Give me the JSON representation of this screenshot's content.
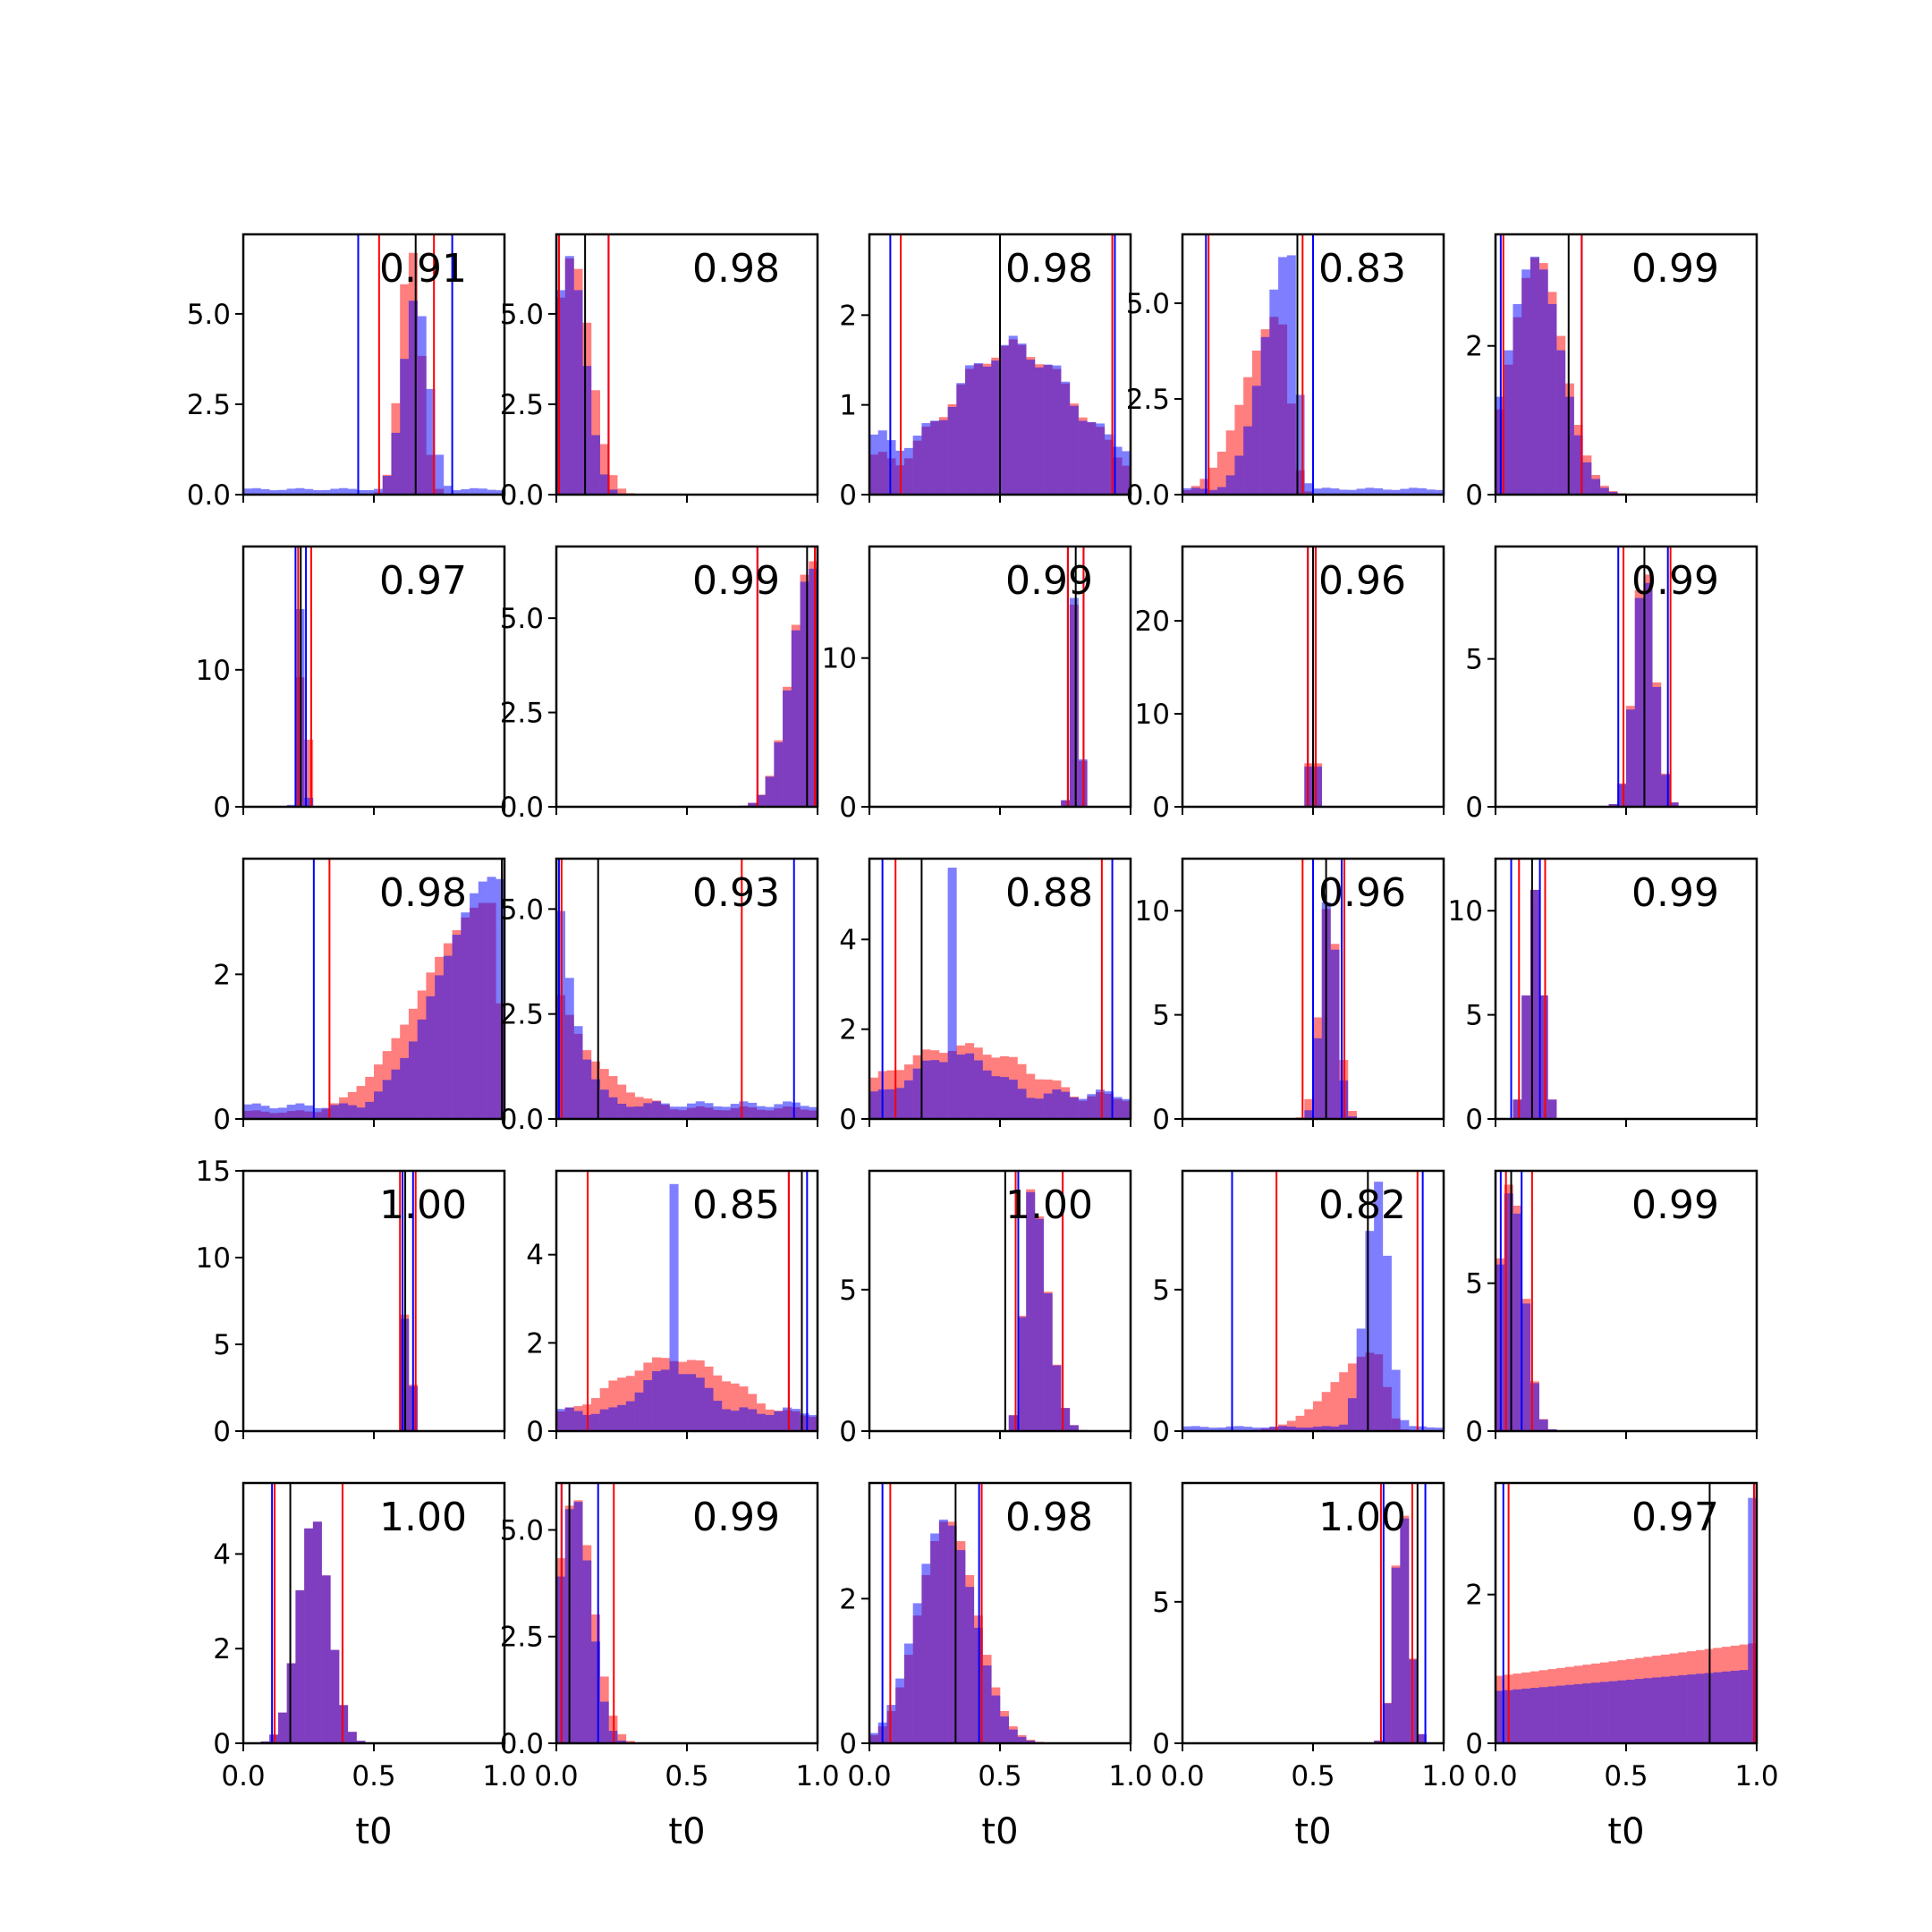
{
  "chart_data": {
    "type": "histogram-grid",
    "rows": 5,
    "cols": 5,
    "xlabel": "t0",
    "xlim": [
      0,
      1
    ],
    "xticks": [
      0,
      0.5,
      1
    ],
    "xtick_labels": [
      "0.0",
      "0.5",
      "1.0"
    ],
    "colors": {
      "hist_a": "#ff0000",
      "hist_b": "#0000ff",
      "hist_alpha": 0.5,
      "interval_a": "#ff0000",
      "interval_b": "#0000ff",
      "true_value": "#000000"
    },
    "panels": [
      {
        "label": "0.91",
        "ymax": 7.2,
        "yticks": [
          0,
          2.5,
          5.0
        ],
        "ytick_labels": [
          "0.0",
          "2.5",
          "5.0"
        ],
        "truth": 0.66,
        "lines_a": [
          0.52,
          0.73
        ],
        "lines_b": [
          0.44,
          0.8
        ],
        "dist_a": {
          "kind": "normal",
          "mu": 0.64,
          "sigma": 0.04,
          "peak": 6.9
        },
        "dist_b": {
          "kind": "normal",
          "mu": 0.66,
          "sigma": 0.05,
          "peak": 5.5,
          "floor": 0.15
        }
      },
      {
        "label": "0.98",
        "ymax": 7.2,
        "yticks": [
          0,
          2.5,
          5.0
        ],
        "ytick_labels": [
          "0.0",
          "2.5",
          "5.0"
        ],
        "truth": 0.11,
        "lines_a": [
          0.01,
          0.2
        ],
        "lines_b": [
          0.01,
          0.2
        ],
        "dist_a": {
          "kind": "normal",
          "mu": 0.06,
          "sigma": 0.07,
          "peak": 6.6
        },
        "dist_b": {
          "kind": "normal",
          "mu": 0.05,
          "sigma": 0.06,
          "peak": 6.6
        }
      },
      {
        "label": "0.98",
        "ymax": 2.9,
        "yticks": [
          0,
          1,
          2
        ],
        "ytick_labels": [
          "0",
          "1",
          "2"
        ],
        "truth": 0.5,
        "lines_a": [
          0.12,
          0.93
        ],
        "lines_b": [
          0.08,
          0.94
        ],
        "dist_a": {
          "kind": "normal",
          "mu": 0.55,
          "sigma": 0.25,
          "peak": 1.65,
          "floor": 0.4
        },
        "dist_b": {
          "kind": "normal",
          "mu": 0.55,
          "sigma": 0.25,
          "peak": 1.65,
          "floor": 0.6
        }
      },
      {
        "label": "0.83",
        "ymax": 6.8,
        "yticks": [
          0,
          2.5,
          5.0
        ],
        "ytick_labels": [
          "0.0",
          "2.5",
          "5.0"
        ],
        "truth": 0.44,
        "lines_a": [
          0.1,
          0.46
        ],
        "lines_b": [
          0.09,
          0.5
        ],
        "dist_a": {
          "kind": "skew",
          "mu": 0.37,
          "sl": 0.13,
          "sr": 0.04,
          "peak": 4.7
        },
        "dist_b": {
          "kind": "skew",
          "mu": 0.41,
          "sl": 0.1,
          "sr": 0.03,
          "peak": 6.4,
          "floor": 0.15
        }
      },
      {
        "label": "0.99",
        "ymax": 3.5,
        "yticks": [
          0,
          2
        ],
        "ytick_labels": [
          "0",
          "2"
        ],
        "truth": 0.28,
        "lines_a": [
          0.03,
          0.33
        ],
        "lines_b": [
          0.02,
          0.33
        ],
        "dist_a": {
          "kind": "normal",
          "mu": 0.16,
          "sigma": 0.1,
          "peak": 3.2
        },
        "dist_b": {
          "kind": "normal",
          "mu": 0.15,
          "sigma": 0.1,
          "peak": 3.2
        }
      },
      {
        "label": "0.97",
        "ymax": 19,
        "yticks": [
          0,
          10
        ],
        "ytick_labels": [
          "0",
          "10"
        ],
        "truth": 0.22,
        "lines_a": [
          0.21,
          0.26
        ],
        "lines_b": [
          0.2,
          0.24
        ],
        "dist_a": {
          "kind": "normal",
          "mu": 0.23,
          "sigma": 0.013,
          "peak": 16
        },
        "dist_b": {
          "kind": "normal",
          "mu": 0.22,
          "sigma": 0.012,
          "peak": 15
        }
      },
      {
        "label": "0.99",
        "ymax": 6.9,
        "yticks": [
          0,
          2.5,
          5.0
        ],
        "ytick_labels": [
          "0.0",
          "2.5",
          "5.0"
        ],
        "truth": 0.96,
        "lines_a": [
          0.77,
          0.99
        ],
        "lines_b": [
          0.77,
          0.99
        ],
        "dist_a": {
          "kind": "skew",
          "mu": 0.98,
          "sl": 0.08,
          "sr": 0.02,
          "peak": 6.6
        },
        "dist_b": {
          "kind": "skew",
          "mu": 0.98,
          "sl": 0.08,
          "sr": 0.02,
          "peak": 6.4
        }
      },
      {
        "label": "0.99",
        "ymax": 17.5,
        "yticks": [
          0,
          10
        ],
        "ytick_labels": [
          "0",
          "10"
        ],
        "truth": 0.79,
        "lines_a": [
          0.76,
          0.82
        ],
        "lines_b": [
          0.76,
          0.82
        ],
        "dist_a": {
          "kind": "normal",
          "mu": 0.79,
          "sigma": 0.015,
          "peak": 15
        },
        "dist_b": {
          "kind": "normal",
          "mu": 0.79,
          "sigma": 0.015,
          "peak": 15.5
        }
      },
      {
        "label": "0.96",
        "ymax": 28,
        "yticks": [
          0,
          10,
          20
        ],
        "ytick_labels": [
          "0",
          "10",
          "20"
        ],
        "truth": 0.5,
        "lines_a": [
          0.48,
          0.51
        ],
        "lines_b": [
          0.48,
          0.51
        ],
        "dist_a": {
          "kind": "normal",
          "mu": 0.5,
          "sigma": 0.009,
          "peak": 26
        },
        "dist_b": {
          "kind": "normal",
          "mu": 0.5,
          "sigma": 0.009,
          "peak": 24
        }
      },
      {
        "label": "0.99",
        "ymax": 8.8,
        "yticks": [
          0,
          5
        ],
        "ytick_labels": [
          "0",
          "5"
        ],
        "truth": 0.57,
        "lines_a": [
          0.49,
          0.67
        ],
        "lines_b": [
          0.47,
          0.66
        ],
        "dist_a": {
          "kind": "normal",
          "mu": 0.57,
          "sigma": 0.04,
          "peak": 8.3
        },
        "dist_b": {
          "kind": "normal",
          "mu": 0.57,
          "sigma": 0.04,
          "peak": 8.0
        }
      },
      {
        "label": "0.98",
        "ymax": 3.6,
        "yticks": [
          0,
          2
        ],
        "ytick_labels": [
          "0",
          "2"
        ],
        "truth": 0.99,
        "lines_a": [
          0.33,
          0.99
        ],
        "lines_b": [
          0.27,
          0.99
        ],
        "dist_a": {
          "kind": "skew",
          "mu": 0.95,
          "sl": 0.26,
          "sr": 0.03,
          "peak": 3.0,
          "floor": 0.1
        },
        "dist_b": {
          "kind": "skew",
          "mu": 0.98,
          "sl": 0.22,
          "sr": 0.02,
          "peak": 3.4,
          "floor": 0.18
        }
      },
      {
        "label": "0.93",
        "ymax": 6.2,
        "yticks": [
          0,
          2.5,
          5.0
        ],
        "ytick_labels": [
          "0.0",
          "2.5",
          "5.0"
        ],
        "truth": 0.16,
        "lines_a": [
          0.71,
          0.02
        ],
        "lines_b": [
          0.01,
          0.91
        ],
        "dist_a": {
          "kind": "decay",
          "lambda": 5.5,
          "peak": 3.2,
          "floor": 0.25
        },
        "dist_b": {
          "kind": "decay",
          "lambda": 12,
          "peak": 6.0,
          "floor": 0.35
        }
      },
      {
        "label": "0.88",
        "ymax": 5.8,
        "yticks": [
          0,
          2,
          4
        ],
        "ytick_labels": [
          "0",
          "2",
          "4"
        ],
        "truth": 0.2,
        "lines_a": [
          0.89,
          0.1
        ],
        "lines_b": [
          0.05,
          0.93
        ],
        "dist_a": {
          "kind": "normal",
          "mu": 0.35,
          "sigma": 0.3,
          "peak": 1.6,
          "floor": 0.5
        },
        "dist_b": {
          "kind": "spike",
          "mu": 0.33,
          "sigma": 0.2,
          "peak": 1.4,
          "floor": 0.55,
          "spike_at": 0.33,
          "spike_h": 5.6
        }
      },
      {
        "label": "0.96",
        "ymax": 12.5,
        "yticks": [
          0,
          5,
          10
        ],
        "ytick_labels": [
          "0",
          "5",
          "10"
        ],
        "truth": 0.55,
        "lines_a": [
          0.46,
          0.62
        ],
        "lines_b": [
          0.5,
          0.61
        ],
        "dist_a": {
          "kind": "normal",
          "mu": 0.56,
          "sigma": 0.035,
          "peak": 10.5
        },
        "dist_b": {
          "kind": "normal",
          "mu": 0.56,
          "sigma": 0.03,
          "peak": 11
        }
      },
      {
        "label": "0.99",
        "ymax": 12.5,
        "yticks": [
          0,
          5,
          10
        ],
        "ytick_labels": [
          "0",
          "5",
          "10"
        ],
        "truth": 0.14,
        "lines_a": [
          0.09,
          0.19
        ],
        "lines_b": [
          0.06,
          0.17
        ],
        "dist_a": {
          "kind": "normal",
          "mu": 0.15,
          "sigma": 0.03,
          "peak": 11
        },
        "dist_b": {
          "kind": "normal",
          "mu": 0.15,
          "sigma": 0.03,
          "peak": 11
        }
      },
      {
        "label": "1.00",
        "ymax": 15,
        "yticks": [
          0,
          5,
          10,
          15
        ],
        "ytick_labels": [
          "0",
          "5",
          "10",
          "15"
        ],
        "truth": 0.62,
        "lines_a": [
          0.6,
          0.66
        ],
        "lines_b": [
          0.61,
          0.65
        ],
        "dist_a": {
          "kind": "normal",
          "mu": 0.63,
          "sigma": 0.011,
          "peak": 14
        },
        "dist_b": {
          "kind": "normal",
          "mu": 0.63,
          "sigma": 0.011,
          "peak": 13.5
        }
      },
      {
        "label": "0.85",
        "ymax": 5.9,
        "yticks": [
          0,
          2,
          4
        ],
        "ytick_labels": [
          "0",
          "2",
          "4"
        ],
        "truth": 0.94,
        "lines_a": [
          0.12,
          0.89
        ],
        "lines_b": [
          0.89,
          0.96
        ],
        "dist_a": {
          "kind": "normal",
          "mu": 0.45,
          "sigma": 0.25,
          "peak": 1.65,
          "floor": 0.4
        },
        "dist_b": {
          "kind": "spike",
          "mu": 0.45,
          "sigma": 0.15,
          "peak": 1.4,
          "floor": 0.45,
          "spike_at": 0.45,
          "spike_h": 5.6
        }
      },
      {
        "label": "1.00",
        "ymax": 9.2,
        "yticks": [
          0,
          5
        ],
        "ytick_labels": [
          "0",
          "5"
        ],
        "truth": 0.52,
        "lines_a": [
          0.56,
          0.74
        ],
        "lines_b": [
          0.57,
          0.74
        ],
        "dist_a": {
          "kind": "skew",
          "mu": 0.62,
          "sl": 0.03,
          "sr": 0.06,
          "peak": 8.6
        },
        "dist_b": {
          "kind": "skew",
          "mu": 0.62,
          "sl": 0.03,
          "sr": 0.06,
          "peak": 8.5
        }
      },
      {
        "label": "0.82",
        "ymax": 9.2,
        "yticks": [
          0,
          5
        ],
        "ytick_labels": [
          "0",
          "5"
        ],
        "truth": 0.71,
        "lines_a": [
          0.36,
          0.9
        ],
        "lines_b": [
          0.19,
          0.92
        ],
        "dist_a": {
          "kind": "skew",
          "mu": 0.74,
          "sl": 0.16,
          "sr": 0.04,
          "peak": 2.8
        },
        "dist_b": {
          "kind": "skew",
          "mu": 0.75,
          "sl": 0.05,
          "sr": 0.04,
          "peak": 8.8,
          "floor": 0.15
        }
      },
      {
        "label": "0.99",
        "ymax": 8.8,
        "yticks": [
          0,
          5
        ],
        "ytick_labels": [
          "0",
          "5"
        ],
        "truth": 0.06,
        "lines_a": [
          0.04,
          0.14
        ],
        "lines_b": [
          0.02,
          0.1
        ],
        "dist_a": {
          "kind": "normal",
          "mu": 0.06,
          "sigma": 0.05,
          "peak": 8.5
        },
        "dist_b": {
          "kind": "normal",
          "mu": 0.06,
          "sigma": 0.05,
          "peak": 8.2
        }
      },
      {
        "label": "1.00",
        "ymax": 5.5,
        "yticks": [
          0,
          2,
          4
        ],
        "ytick_labels": [
          "0",
          "2",
          "4"
        ],
        "truth": 0.18,
        "lines_a": [
          0.12,
          0.38
        ],
        "lines_b": [
          0.11,
          0.38
        ],
        "dist_a": {
          "kind": "normal",
          "mu": 0.27,
          "sigma": 0.06,
          "peak": 4.8
        },
        "dist_b": {
          "kind": "normal",
          "mu": 0.27,
          "sigma": 0.06,
          "peak": 4.8
        }
      },
      {
        "label": "0.99",
        "ymax": 6.1,
        "yticks": [
          0,
          2.5,
          5.0
        ],
        "ytick_labels": [
          "0.0",
          "2.5",
          "5.0"
        ],
        "truth": 0.05,
        "lines_a": [
          0.02,
          0.22
        ],
        "lines_b": [
          0.02,
          0.16
        ],
        "dist_a": {
          "kind": "normal",
          "mu": 0.07,
          "sigma": 0.07,
          "peak": 5.8
        },
        "dist_b": {
          "kind": "normal",
          "mu": 0.07,
          "sigma": 0.06,
          "peak": 5.8
        }
      },
      {
        "label": "0.98",
        "ymax": 3.6,
        "yticks": [
          0,
          2
        ],
        "ytick_labels": [
          "0",
          "2"
        ],
        "truth": 0.33,
        "lines_a": [
          0.08,
          0.43
        ],
        "lines_b": [
          0.05,
          0.42
        ],
        "dist_a": {
          "kind": "normal",
          "mu": 0.3,
          "sigma": 0.11,
          "peak": 3.1
        },
        "dist_b": {
          "kind": "normal",
          "mu": 0.29,
          "sigma": 0.11,
          "peak": 3.1
        }
      },
      {
        "label": "1.00",
        "ymax": 9.2,
        "yticks": [
          0,
          5
        ],
        "ytick_labels": [
          "0",
          "5"
        ],
        "truth": 0.9,
        "lines_a": [
          0.76,
          0.88
        ],
        "lines_b": [
          0.77,
          0.93
        ],
        "dist_a": {
          "kind": "normal",
          "mu": 0.84,
          "sigma": 0.03,
          "peak": 8.5
        },
        "dist_b": {
          "kind": "normal",
          "mu": 0.84,
          "sigma": 0.03,
          "peak": 8.4
        }
      },
      {
        "label": "0.97",
        "ymax": 3.5,
        "yticks": [
          0,
          2
        ],
        "ytick_labels": [
          "0",
          "2"
        ],
        "truth": 0.82,
        "lines_a": [
          0.05,
          0.99
        ],
        "lines_b": [
          0.03,
          0.99
        ],
        "dist_a": {
          "kind": "uniform",
          "lo": 0.9,
          "hi": 1.35
        },
        "dist_b": {
          "kind": "uniform",
          "lo": 0.7,
          "hi": 1.0,
          "edge_right": 3.3
        }
      }
    ]
  }
}
